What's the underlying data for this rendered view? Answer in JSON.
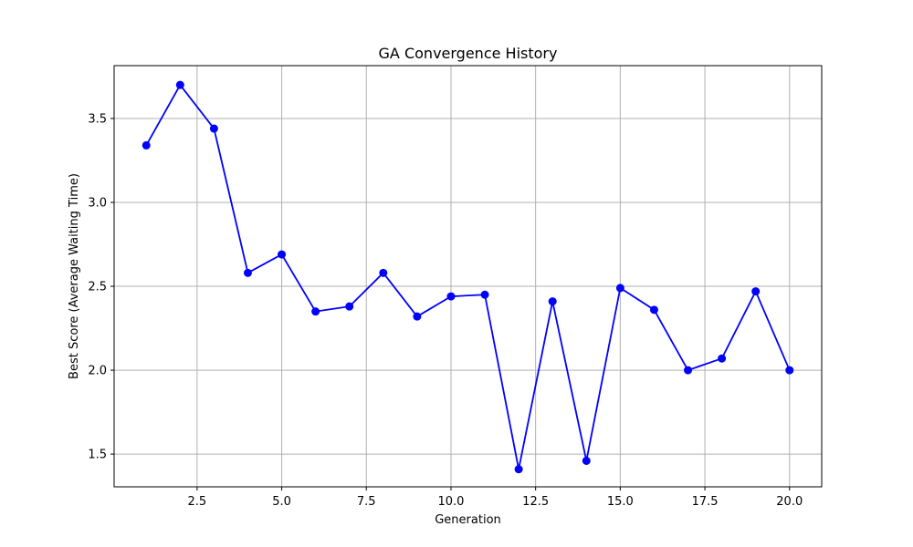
{
  "chart_data": {
    "type": "line",
    "title": "GA Convergence History",
    "xlabel": "Generation",
    "ylabel": "Best Score (Average Waiting Time)",
    "xlim": [
      0.05,
      20.95
    ],
    "ylim": [
      1.305,
      3.815
    ],
    "xticks": [
      2.5,
      5.0,
      7.5,
      10.0,
      12.5,
      15.0,
      17.5,
      20.0
    ],
    "xtick_labels": [
      "2.5",
      "5.0",
      "7.5",
      "10.0",
      "12.5",
      "15.0",
      "17.5",
      "20.0"
    ],
    "yticks": [
      1.5,
      2.0,
      2.5,
      3.0,
      3.5
    ],
    "ytick_labels": [
      "1.5",
      "2.0",
      "2.5",
      "3.0",
      "3.5"
    ],
    "grid": true,
    "series": [
      {
        "name": "Best Score",
        "color": "#0000ff",
        "marker": "circle",
        "x": [
          1,
          2,
          3,
          4,
          5,
          6,
          7,
          8,
          9,
          10,
          11,
          12,
          13,
          14,
          15,
          16,
          17,
          18,
          19,
          20
        ],
        "values": [
          3.34,
          3.7,
          3.44,
          2.58,
          2.69,
          2.35,
          2.38,
          2.58,
          2.32,
          2.44,
          2.45,
          1.41,
          2.41,
          1.46,
          2.49,
          2.36,
          2.0,
          2.07,
          2.47,
          2.0
        ]
      }
    ]
  },
  "colors": {
    "line": "#0000ff",
    "grid": "#b0b0b0",
    "axis": "#000000",
    "background": "#ffffff"
  }
}
